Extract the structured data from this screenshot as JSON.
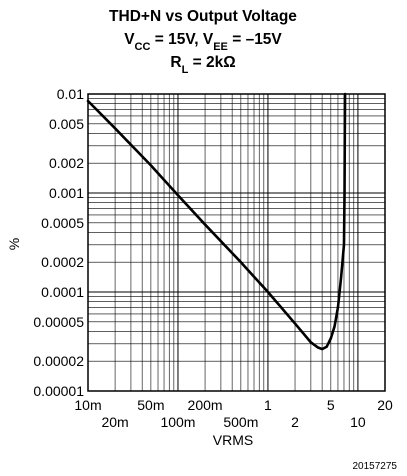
{
  "chart_data": {
    "type": "line",
    "title": {
      "line1": "THD+N vs Output Voltage",
      "line2_parts": [
        {
          "text": "V",
          "sub": false
        },
        {
          "text": "CC",
          "sub": true
        },
        {
          "text": " = 15V, V",
          "sub": false
        },
        {
          "text": "EE",
          "sub": true
        },
        {
          "text": " = –15V",
          "sub": false
        }
      ],
      "line3_parts": [
        {
          "text": "R",
          "sub": false
        },
        {
          "text": "L",
          "sub": true
        },
        {
          "text": " = 2kΩ",
          "sub": false
        }
      ]
    },
    "xlabel": "VRMS",
    "ylabel": "%",
    "x_scale": "log",
    "y_scale": "log",
    "xlim": [
      0.01,
      20
    ],
    "ylim": [
      1e-05,
      0.01
    ],
    "grid": true,
    "x_ticks_upper": [
      {
        "value": 0.01,
        "label": "10m"
      },
      {
        "value": 0.05,
        "label": "50m"
      },
      {
        "value": 0.2,
        "label": "200m"
      },
      {
        "value": 1,
        "label": "1"
      },
      {
        "value": 5,
        "label": "5"
      },
      {
        "value": 20,
        "label": "20"
      }
    ],
    "x_ticks_lower": [
      {
        "value": 0.02,
        "label": "20m"
      },
      {
        "value": 0.1,
        "label": "100m"
      },
      {
        "value": 0.5,
        "label": "500m"
      },
      {
        "value": 2,
        "label": "2"
      },
      {
        "value": 10,
        "label": "10"
      }
    ],
    "y_ticks": [
      {
        "value": 0.01,
        "label": "0.01"
      },
      {
        "value": 0.005,
        "label": "0.005"
      },
      {
        "value": 0.002,
        "label": "0.002"
      },
      {
        "value": 0.001,
        "label": "0.001"
      },
      {
        "value": 0.0005,
        "label": "0.0005"
      },
      {
        "value": 0.0002,
        "label": "0.0002"
      },
      {
        "value": 0.0001,
        "label": "0.0001"
      },
      {
        "value": 5e-05,
        "label": "0.00005"
      },
      {
        "value": 2e-05,
        "label": "0.00002"
      },
      {
        "value": 1e-05,
        "label": "0.00001"
      }
    ],
    "series": [
      {
        "x": [
          0.01,
          0.02,
          0.05,
          0.1,
          0.2,
          0.5,
          1,
          2,
          3,
          3.6,
          4,
          4.5,
          5,
          5.5,
          6,
          6.5,
          7,
          7.1,
          7.15,
          7.2
        ],
        "y": [
          0.0085,
          0.0045,
          0.0019,
          0.00095,
          0.00048,
          0.0002,
          0.0001,
          4.8e-05,
          3.1e-05,
          2.75e-05,
          2.65e-05,
          2.8e-05,
          3.4e-05,
          4.5e-05,
          7e-05,
          0.00014,
          0.0003,
          0.001,
          0.004,
          0.01
        ]
      }
    ]
  },
  "footnote": "20157275"
}
